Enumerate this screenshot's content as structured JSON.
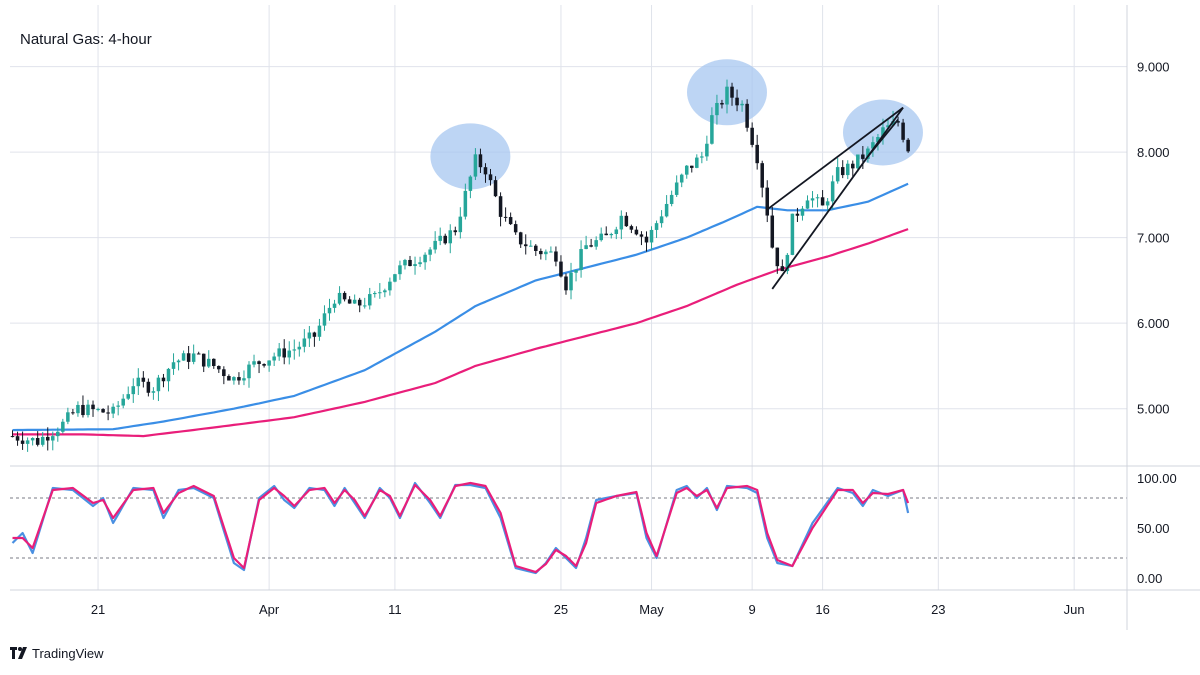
{
  "title": "Natural Gas: 4-hour",
  "brand": "TradingView",
  "colors": {
    "up": "#26a69a",
    "down": "#131722",
    "sma_fast": "#3a8ee6",
    "sma_slow": "#e91e7a",
    "stoch_k": "#4a90e2",
    "stoch_d": "#e91e7a",
    "circle": "#a7c7f0",
    "grid": "#e0e3eb",
    "trendline": "#131722"
  },
  "price_axis": {
    "ticks": [
      "9.000",
      "8.000",
      "7.000",
      "6.000",
      "5.000"
    ],
    "tick_values": [
      9,
      8,
      7,
      6,
      5
    ],
    "range": [
      4.33,
      9.72
    ]
  },
  "osc_axis": {
    "ticks": [
      "100.00",
      "50.00",
      "0.00"
    ],
    "tick_values": [
      100,
      50,
      0
    ],
    "range": [
      -12,
      112
    ],
    "levels": [
      80,
      20
    ]
  },
  "time_axis": {
    "labels": [
      "21",
      "Apr",
      "11",
      "25",
      "May",
      "9",
      "16",
      "23",
      "Jun"
    ],
    "label_index": [
      17,
      51,
      76,
      109,
      127,
      147,
      161,
      184,
      211
    ],
    "total_bars": 222
  },
  "chart_data": {
    "type": "candlestick",
    "title": "Natural Gas: 4-hour",
    "x_label_dates": [
      "21",
      "Apr",
      "11",
      "25",
      "May",
      "9",
      "16",
      "23",
      "Jun"
    ],
    "price_anchors": [
      [
        0,
        4.68
      ],
      [
        5,
        4.62
      ],
      [
        10,
        4.82
      ],
      [
        13,
        5.0
      ],
      [
        20,
        4.95
      ],
      [
        24,
        5.3
      ],
      [
        28,
        5.25
      ],
      [
        32,
        5.55
      ],
      [
        36,
        5.62
      ],
      [
        40,
        5.5
      ],
      [
        44,
        5.35
      ],
      [
        48,
        5.52
      ],
      [
        52,
        5.62
      ],
      [
        56,
        5.7
      ],
      [
        60,
        5.85
      ],
      [
        64,
        6.3
      ],
      [
        68,
        6.2
      ],
      [
        72,
        6.3
      ],
      [
        76,
        6.6
      ],
      [
        80,
        6.75
      ],
      [
        84,
        6.9
      ],
      [
        88,
        7.1
      ],
      [
        92,
        7.9
      ],
      [
        94,
        7.8
      ],
      [
        97,
        7.3
      ],
      [
        100,
        7.0
      ],
      [
        104,
        6.85
      ],
      [
        108,
        6.8
      ],
      [
        110,
        6.45
      ],
      [
        114,
        6.9
      ],
      [
        118,
        7.0
      ],
      [
        121,
        7.25
      ],
      [
        124,
        7.1
      ],
      [
        126,
        6.95
      ],
      [
        130,
        7.4
      ],
      [
        134,
        7.8
      ],
      [
        137,
        7.95
      ],
      [
        139,
        8.4
      ],
      [
        142,
        8.7
      ],
      [
        145,
        8.55
      ],
      [
        148,
        7.95
      ],
      [
        150,
        7.3
      ],
      [
        151,
        6.9
      ],
      [
        153,
        6.55
      ],
      [
        155,
        7.2
      ],
      [
        158,
        7.5
      ],
      [
        161,
        7.35
      ],
      [
        164,
        7.75
      ],
      [
        167,
        7.85
      ],
      [
        170,
        8.0
      ],
      [
        173,
        8.25
      ],
      [
        176,
        8.35
      ],
      [
        178,
        8.05
      ]
    ],
    "sma_fast_anchors": [
      [
        0,
        4.75
      ],
      [
        20,
        4.76
      ],
      [
        30,
        4.85
      ],
      [
        44,
        5.0
      ],
      [
        56,
        5.15
      ],
      [
        70,
        5.45
      ],
      [
        84,
        5.9
      ],
      [
        92,
        6.2
      ],
      [
        104,
        6.5
      ],
      [
        114,
        6.65
      ],
      [
        124,
        6.8
      ],
      [
        134,
        7.0
      ],
      [
        142,
        7.2
      ],
      [
        148,
        7.36
      ],
      [
        154,
        7.32
      ],
      [
        162,
        7.32
      ],
      [
        170,
        7.42
      ],
      [
        178,
        7.63
      ]
    ],
    "sma_slow_anchors": [
      [
        0,
        4.7
      ],
      [
        14,
        4.7
      ],
      [
        26,
        4.68
      ],
      [
        40,
        4.78
      ],
      [
        56,
        4.9
      ],
      [
        70,
        5.08
      ],
      [
        84,
        5.3
      ],
      [
        92,
        5.5
      ],
      [
        104,
        5.7
      ],
      [
        114,
        5.85
      ],
      [
        124,
        6.0
      ],
      [
        134,
        6.2
      ],
      [
        144,
        6.45
      ],
      [
        152,
        6.62
      ],
      [
        162,
        6.78
      ],
      [
        170,
        6.93
      ],
      [
        178,
        7.1
      ]
    ],
    "stoch_k_anchors": [
      [
        0,
        35
      ],
      [
        2,
        45
      ],
      [
        4,
        25
      ],
      [
        8,
        90
      ],
      [
        12,
        88
      ],
      [
        16,
        72
      ],
      [
        18,
        80
      ],
      [
        20,
        55
      ],
      [
        24,
        90
      ],
      [
        28,
        88
      ],
      [
        30,
        60
      ],
      [
        33,
        88
      ],
      [
        36,
        90
      ],
      [
        40,
        80
      ],
      [
        44,
        15
      ],
      [
        46,
        8
      ],
      [
        49,
        80
      ],
      [
        52,
        92
      ],
      [
        54,
        78
      ],
      [
        56,
        70
      ],
      [
        59,
        90
      ],
      [
        62,
        88
      ],
      [
        64,
        72
      ],
      [
        66,
        90
      ],
      [
        68,
        75
      ],
      [
        70,
        60
      ],
      [
        73,
        90
      ],
      [
        75,
        80
      ],
      [
        77,
        60
      ],
      [
        80,
        95
      ],
      [
        83,
        75
      ],
      [
        85,
        60
      ],
      [
        88,
        93
      ],
      [
        91,
        93
      ],
      [
        94,
        90
      ],
      [
        97,
        60
      ],
      [
        100,
        10
      ],
      [
        104,
        5
      ],
      [
        106,
        15
      ],
      [
        108,
        30
      ],
      [
        110,
        20
      ],
      [
        112,
        10
      ],
      [
        114,
        40
      ],
      [
        116,
        78
      ],
      [
        120,
        82
      ],
      [
        124,
        85
      ],
      [
        126,
        40
      ],
      [
        128,
        20
      ],
      [
        132,
        88
      ],
      [
        134,
        92
      ],
      [
        136,
        80
      ],
      [
        138,
        90
      ],
      [
        140,
        68
      ],
      [
        142,
        92
      ],
      [
        146,
        90
      ],
      [
        148,
        85
      ],
      [
        150,
        40
      ],
      [
        152,
        15
      ],
      [
        155,
        12
      ],
      [
        159,
        55
      ],
      [
        164,
        90
      ],
      [
        167,
        85
      ],
      [
        169,
        72
      ],
      [
        171,
        88
      ],
      [
        174,
        82
      ],
      [
        177,
        88
      ],
      [
        178,
        65
      ]
    ],
    "stoch_d_anchors": [
      [
        0,
        40
      ],
      [
        2,
        40
      ],
      [
        4,
        30
      ],
      [
        8,
        88
      ],
      [
        12,
        90
      ],
      [
        16,
        75
      ],
      [
        18,
        78
      ],
      [
        20,
        60
      ],
      [
        24,
        88
      ],
      [
        28,
        90
      ],
      [
        30,
        65
      ],
      [
        33,
        85
      ],
      [
        36,
        92
      ],
      [
        40,
        82
      ],
      [
        44,
        20
      ],
      [
        46,
        10
      ],
      [
        49,
        78
      ],
      [
        52,
        90
      ],
      [
        54,
        82
      ],
      [
        56,
        72
      ],
      [
        59,
        88
      ],
      [
        62,
        90
      ],
      [
        64,
        75
      ],
      [
        66,
        88
      ],
      [
        68,
        78
      ],
      [
        70,
        62
      ],
      [
        73,
        88
      ],
      [
        75,
        82
      ],
      [
        77,
        62
      ],
      [
        80,
        93
      ],
      [
        83,
        78
      ],
      [
        85,
        62
      ],
      [
        88,
        92
      ],
      [
        91,
        95
      ],
      [
        94,
        92
      ],
      [
        97,
        65
      ],
      [
        100,
        12
      ],
      [
        104,
        6
      ],
      [
        106,
        14
      ],
      [
        108,
        28
      ],
      [
        110,
        22
      ],
      [
        112,
        12
      ],
      [
        114,
        35
      ],
      [
        116,
        75
      ],
      [
        120,
        82
      ],
      [
        124,
        86
      ],
      [
        126,
        45
      ],
      [
        128,
        22
      ],
      [
        132,
        85
      ],
      [
        134,
        90
      ],
      [
        136,
        82
      ],
      [
        138,
        88
      ],
      [
        140,
        70
      ],
      [
        142,
        90
      ],
      [
        146,
        92
      ],
      [
        148,
        88
      ],
      [
        150,
        45
      ],
      [
        152,
        18
      ],
      [
        155,
        12
      ],
      [
        159,
        50
      ],
      [
        164,
        88
      ],
      [
        167,
        88
      ],
      [
        169,
        75
      ],
      [
        171,
        85
      ],
      [
        174,
        84
      ],
      [
        177,
        88
      ],
      [
        178,
        75
      ]
    ],
    "wedge_upper": [
      [
        150,
        7.33
      ],
      [
        177,
        8.52
      ]
    ],
    "wedge_lower": [
      [
        151,
        6.4
      ],
      [
        177,
        8.52
      ]
    ],
    "wedge_cross": [
      [
        170,
        7.95
      ],
      [
        176,
        8.38
      ]
    ],
    "highlight_circles": [
      {
        "index": 91,
        "price": 7.95
      },
      {
        "index": 142,
        "price": 8.7
      },
      {
        "index": 173,
        "price": 8.23
      }
    ]
  }
}
